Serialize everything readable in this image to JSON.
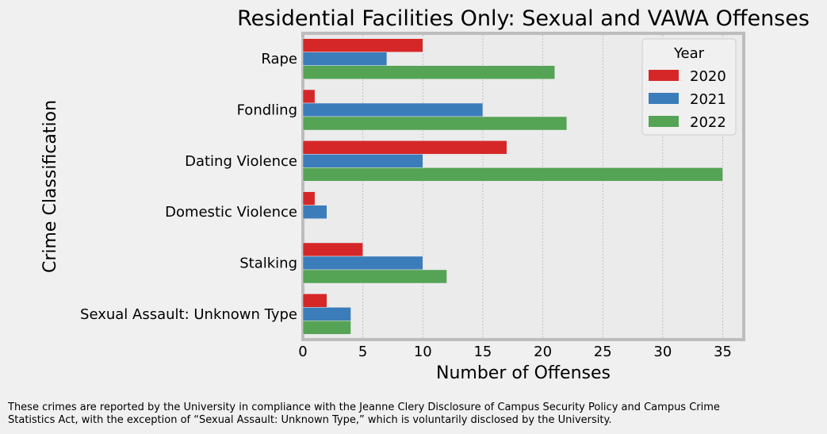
{
  "chart_data": {
    "type": "bar",
    "orientation": "horizontal",
    "title": "Residential Facilities Only: Sexual and VAWA Offenses",
    "xlabel": "Number of Offenses",
    "ylabel": "Crime Classification",
    "xlim": [
      0,
      36.75
    ],
    "xticks": [
      0,
      5,
      10,
      15,
      20,
      25,
      30,
      35
    ],
    "grid": "x",
    "categories": [
      "Rape",
      "Fondling",
      "Dating Violence",
      "Domestic Violence",
      "Stalking",
      "Sexual Assault: Unknown Type"
    ],
    "legend": {
      "title": "Year",
      "position": "top-right"
    },
    "series": [
      {
        "name": "2020",
        "color": "#d62728",
        "values": [
          10,
          1,
          17,
          1,
          5,
          2
        ]
      },
      {
        "name": "2021",
        "color": "#3b7dba",
        "values": [
          7,
          15,
          10,
          2,
          10,
          4
        ]
      },
      {
        "name": "2022",
        "color": "#55a355",
        "values": [
          21,
          22,
          35,
          0,
          12,
          4
        ]
      }
    ]
  },
  "footnote": {
    "line1": "These crimes are reported by the University in compliance with the Jeanne Clery Disclosure of Campus Security Policy and Campus Crime",
    "line2": "Statistics Act, with the exception of “Sexual Assault: Unknown Type,” which is voluntarily disclosed by the University."
  }
}
